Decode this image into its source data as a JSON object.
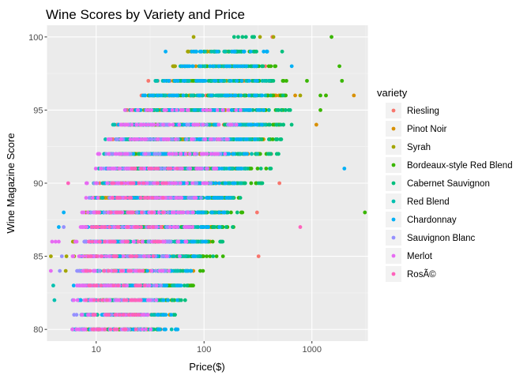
{
  "chart_data": {
    "type": "scatter",
    "title": "Wine Scores by Variety and Price",
    "xlabel": "Price($)",
    "ylabel": "Wine Magazine Score",
    "x_scale": "log10",
    "xlim": [
      3.5,
      3300
    ],
    "ylim": [
      79.2,
      100.8
    ],
    "x_ticks": [
      10,
      100,
      1000
    ],
    "x_tick_labels": [
      "10",
      "100",
      "1000"
    ],
    "y_ticks": [
      80,
      85,
      90,
      95,
      100
    ],
    "y_tick_labels": [
      "80",
      "85",
      "90",
      "95",
      "100"
    ],
    "grid": true,
    "legend_position": "right",
    "legend_title": "variety",
    "series": [
      {
        "name": "Riesling",
        "color": "#F8766D",
        "ranges": {
          "80": [
            7,
            40
          ],
          "81": [
            7,
            45
          ],
          "82": [
            7,
            50
          ],
          "83": [
            8,
            55
          ],
          "84": [
            8,
            60
          ],
          "85": [
            8,
            90
          ],
          "86": [
            8,
            100
          ],
          "87": [
            8,
            120
          ],
          "88": [
            9,
            150
          ],
          "89": [
            9,
            180
          ],
          "90": [
            10,
            200
          ],
          "91": [
            11,
            240
          ],
          "92": [
            12,
            250
          ],
          "93": [
            13,
            280
          ],
          "94": [
            15,
            300
          ],
          "95": [
            17,
            320
          ],
          "96": [
            22,
            300
          ],
          "97": [
            30,
            260
          ]
        },
        "points": [
          [
            320,
            85
          ],
          [
            310,
            88
          ],
          [
            500,
            90
          ],
          [
            420,
            92
          ],
          [
            300,
            96
          ],
          [
            350,
            97
          ],
          [
            370,
            98
          ],
          [
            215,
            98
          ],
          [
            430,
            100
          ]
        ]
      },
      {
        "name": "Pinot Noir",
        "color": "#D89000",
        "ranges": {
          "80": [
            8,
            40
          ],
          "81": [
            8,
            50
          ],
          "82": [
            8,
            60
          ],
          "83": [
            9,
            70
          ],
          "84": [
            9,
            80
          ],
          "85": [
            9,
            100
          ],
          "86": [
            10,
            120
          ],
          "87": [
            10,
            140
          ],
          "88": [
            11,
            160
          ],
          "89": [
            12,
            190
          ],
          "90": [
            13,
            230
          ],
          "91": [
            15,
            280
          ],
          "92": [
            17,
            330
          ],
          "93": [
            20,
            380
          ],
          "94": [
            24,
            430
          ],
          "95": [
            28,
            470
          ],
          "96": [
            40,
            500
          ],
          "97": [
            60,
            450
          ],
          "98": [
            80,
            300
          ]
        },
        "points": [
          [
            1100,
            94
          ],
          [
            1350,
            96
          ],
          [
            700,
            96
          ],
          [
            2450,
            96
          ],
          [
            230,
            97
          ]
        ]
      },
      {
        "name": "Syrah",
        "color": "#A3A500",
        "ranges": {
          "84": [
            5,
            10
          ],
          "85": [
            5,
            15
          ],
          "86": [
            6,
            30
          ],
          "87": [
            7,
            40
          ],
          "88": [
            8,
            55
          ],
          "89": [
            9,
            70
          ],
          "90": [
            10,
            90
          ],
          "91": [
            12,
            120
          ],
          "92": [
            14,
            150
          ],
          "93": [
            16,
            180
          ],
          "94": [
            20,
            200
          ],
          "95": [
            25,
            230
          ],
          "96": [
            30,
            250
          ],
          "97": [
            40,
            200
          ],
          "98": [
            50,
            180
          ],
          "99": [
            70,
            120
          ]
        },
        "points": [
          [
            3.8,
            85
          ],
          [
            80,
            100
          ],
          [
            90,
            98
          ],
          [
            160,
            99
          ],
          [
            195,
            99
          ],
          [
            330,
            100
          ],
          [
            440,
            100
          ],
          [
            70,
            97
          ],
          [
            45,
            97
          ],
          [
            780,
            96
          ]
        ]
      },
      {
        "name": "Bordeaux-style Red Blend",
        "color": "#39B600",
        "ranges": {
          "80": [
            10,
            40
          ],
          "81": [
            10,
            45
          ],
          "82": [
            11,
            60
          ],
          "83": [
            11,
            80
          ],
          "84": [
            12,
            100
          ],
          "85": [
            12,
            150
          ],
          "86": [
            13,
            160
          ],
          "87": [
            14,
            190
          ],
          "88": [
            15,
            230
          ],
          "89": [
            16,
            280
          ],
          "90": [
            17,
            350
          ],
          "91": [
            18,
            400
          ],
          "92": [
            20,
            450
          ],
          "93": [
            22,
            480
          ],
          "94": [
            25,
            550
          ],
          "95": [
            30,
            600
          ],
          "96": [
            40,
            620
          ],
          "97": [
            60,
            620
          ],
          "98": [
            100,
            500
          ],
          "99": [
            120,
            300
          ]
        },
        "points": [
          [
            3100,
            88
          ],
          [
            1520,
            100
          ],
          [
            1800,
            98
          ],
          [
            1900,
            97
          ],
          [
            1200,
            96
          ],
          [
            1350,
            96
          ],
          [
            1200,
            95
          ],
          [
            900,
            97
          ],
          [
            100,
            99
          ]
        ]
      },
      {
        "name": "Cabernet Sauvignon",
        "color": "#00BF7D",
        "ranges": {
          "80": [
            8,
            45
          ],
          "81": [
            8,
            60
          ],
          "82": [
            8,
            70
          ],
          "83": [
            8,
            80
          ],
          "84": [
            8,
            90
          ],
          "85": [
            9,
            130
          ],
          "86": [
            9,
            150
          ],
          "87": [
            10,
            190
          ],
          "88": [
            11,
            230
          ],
          "89": [
            11,
            300
          ],
          "90": [
            12,
            370
          ],
          "91": [
            13,
            420
          ],
          "92": [
            14,
            500
          ],
          "93": [
            16,
            550
          ],
          "94": [
            18,
            650
          ],
          "95": [
            22,
            720
          ],
          "96": [
            30,
            560
          ],
          "97": [
            50,
            460
          ],
          "98": [
            80,
            370
          ],
          "99": [
            120,
            330
          ],
          "100": [
            200,
            320
          ]
        },
        "points": [
          [
            280,
            100
          ],
          [
            190,
            100
          ],
          [
            530,
            99
          ],
          [
            280,
            98
          ],
          [
            180,
            99
          ]
        ]
      },
      {
        "name": "Red Blend",
        "color": "#00C0AF",
        "ranges": {
          "80": [
            6,
            40
          ],
          "81": [
            6,
            45
          ],
          "82": [
            6,
            50
          ],
          "83": [
            6,
            55
          ],
          "84": [
            6,
            60
          ],
          "85": [
            7,
            90
          ],
          "86": [
            7,
            100
          ],
          "87": [
            7,
            130
          ],
          "88": [
            8,
            160
          ],
          "89": [
            8,
            200
          ],
          "90": [
            9,
            250
          ],
          "91": [
            10,
            280
          ],
          "92": [
            11,
            320
          ],
          "93": [
            12,
            350
          ],
          "94": [
            14,
            380
          ],
          "95": [
            16,
            400
          ],
          "96": [
            25,
            400
          ],
          "97": [
            35,
            420
          ],
          "98": [
            60,
            300
          ],
          "99": [
            80,
            200
          ]
        },
        "points": [
          [
            6.4,
            80
          ],
          [
            4.1,
            82
          ],
          [
            4,
            83
          ],
          [
            50,
            80
          ],
          [
            55,
            80
          ]
        ]
      },
      {
        "name": "Chardonnay",
        "color": "#00B0F6",
        "ranges": {
          "80": [
            6,
            58
          ],
          "81": [
            6,
            50
          ],
          "82": [
            6,
            60
          ],
          "83": [
            6,
            70
          ],
          "84": [
            7,
            80
          ],
          "85": [
            7,
            100
          ],
          "86": [
            8,
            120
          ],
          "87": [
            8,
            140
          ],
          "88": [
            9,
            160
          ],
          "89": [
            9,
            190
          ],
          "90": [
            10,
            220
          ],
          "91": [
            11,
            250
          ],
          "92": [
            12,
            280
          ],
          "93": [
            14,
            300
          ],
          "94": [
            16,
            350
          ],
          "95": [
            20,
            400
          ],
          "96": [
            25,
            380
          ],
          "97": [
            35,
            330
          ],
          "98": [
            50,
            330
          ],
          "99": [
            70,
            400
          ]
        },
        "points": [
          [
            2000,
            91
          ],
          [
            44,
            99
          ],
          [
            380,
            99
          ],
          [
            270,
            99
          ],
          [
            650,
            98
          ],
          [
            4.5,
            87
          ],
          [
            5,
            88
          ]
        ]
      },
      {
        "name": "Sauvignon Blanc",
        "color": "#9590FF",
        "ranges": {
          "80": [
            6,
            25
          ],
          "81": [
            6,
            30
          ],
          "82": [
            6,
            35
          ],
          "83": [
            6,
            40
          ],
          "84": [
            6,
            45
          ],
          "85": [
            7,
            50
          ],
          "86": [
            7,
            60
          ],
          "87": [
            7,
            70
          ],
          "88": [
            8,
            80
          ],
          "89": [
            8,
            100
          ],
          "90": [
            9,
            120
          ],
          "91": [
            10,
            140
          ],
          "92": [
            12,
            160
          ],
          "93": [
            14,
            180
          ],
          "94": [
            18,
            200
          ]
        },
        "points": [
          [
            4.8,
            85
          ],
          [
            4.6,
            84
          ],
          [
            5,
            87
          ]
        ]
      },
      {
        "name": "Merlot",
        "color": "#E76BF3",
        "ranges": {
          "80": [
            6,
            35
          ],
          "81": [
            6,
            40
          ],
          "82": [
            6,
            40
          ],
          "83": [
            6,
            45
          ],
          "84": [
            6,
            50
          ],
          "85": [
            6,
            60
          ],
          "86": [
            6,
            70
          ],
          "87": [
            7,
            80
          ],
          "88": [
            7,
            90
          ],
          "89": [
            8,
            100
          ],
          "90": [
            8,
            120
          ],
          "91": [
            9,
            140
          ],
          "92": [
            10,
            160
          ],
          "93": [
            12,
            180
          ],
          "94": [
            14,
            200
          ],
          "95": [
            18,
            220
          ]
        },
        "points": [
          [
            3.8,
            84
          ],
          [
            3.9,
            86
          ],
          [
            4.2,
            86
          ],
          [
            4.5,
            86
          ]
        ]
      },
      {
        "name": "RosÃ©",
        "color": "#FF62BC",
        "ranges": {
          "80": [
            8,
            25
          ],
          "81": [
            8,
            25
          ],
          "82": [
            8,
            30
          ],
          "83": [
            8,
            30
          ],
          "84": [
            8,
            30
          ],
          "85": [
            8,
            35
          ],
          "86": [
            8,
            40
          ],
          "87": [
            9,
            40
          ],
          "88": [
            10,
            45
          ],
          "89": [
            12,
            50
          ],
          "90": [
            14,
            55
          ],
          "91": [
            20,
            60
          ]
        },
        "points": [
          [
            780,
            87
          ],
          [
            5.5,
            90
          ]
        ]
      }
    ]
  }
}
